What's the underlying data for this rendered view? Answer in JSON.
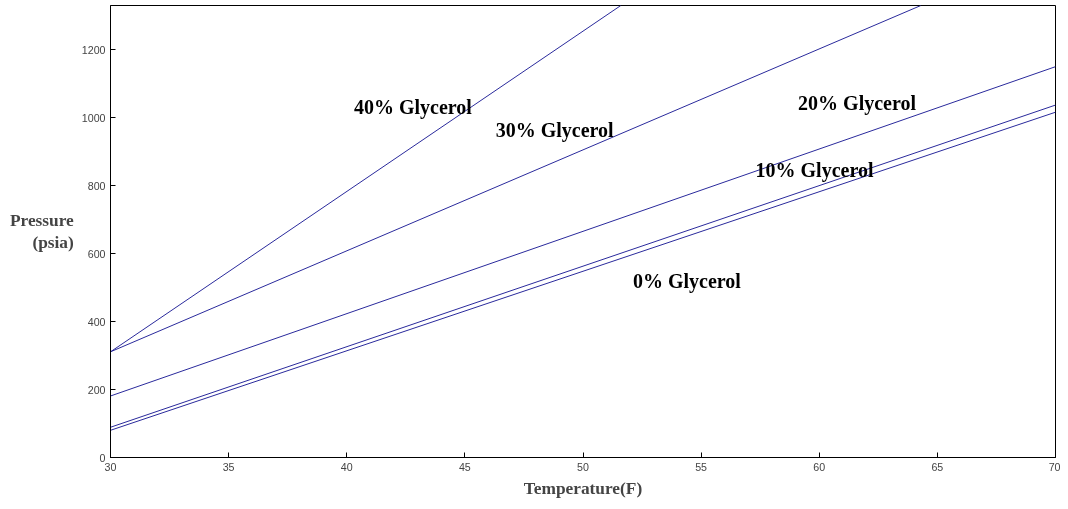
{
  "chart_data": {
    "type": "line",
    "xlabel": "Temperature(F)",
    "ylabel": "Pressure\n(psia)",
    "xlim": [
      30,
      70
    ],
    "ylim": [
      0,
      1330
    ],
    "xticks": [
      30,
      35,
      40,
      45,
      50,
      55,
      60,
      65,
      70
    ],
    "yticks": [
      0,
      200,
      400,
      600,
      800,
      1000,
      1200
    ],
    "grid": false,
    "marker": "none",
    "line_style": "solid",
    "series": [
      {
        "name": "0% Glycerol",
        "color": "#2a2a9c",
        "x": [
          30,
          70
        ],
        "values": [
          80,
          1016
        ]
      },
      {
        "name": "10% Glycerol",
        "color": "#2a2a9c",
        "x": [
          30,
          70
        ],
        "values": [
          89,
          1037
        ]
      },
      {
        "name": "20% Glycerol",
        "color": "#2a2a9c",
        "x": [
          30,
          70
        ],
        "values": [
          181,
          1150
        ]
      },
      {
        "name": "30% Glycerol",
        "color": "#2a2a9c",
        "x": [
          30,
          64.3
        ],
        "values": [
          311,
          1330
        ]
      },
      {
        "name": "40% Glycerol",
        "color": "#2a2a9c",
        "x": [
          30,
          51.6
        ],
        "values": [
          311,
          1330
        ]
      }
    ]
  }
}
